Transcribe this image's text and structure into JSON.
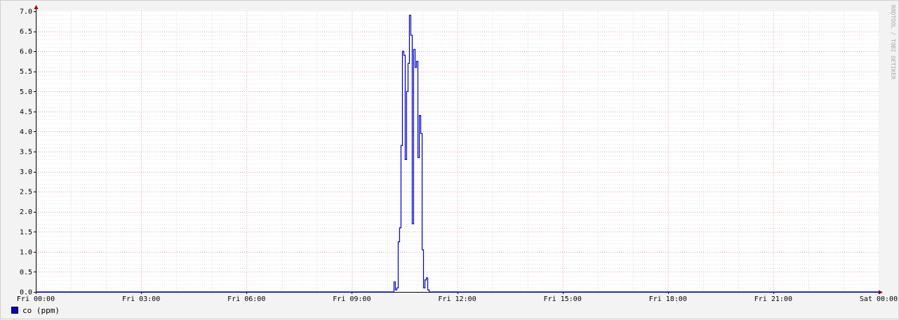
{
  "chart_data": {
    "type": "line",
    "title": "",
    "xlabel": "",
    "ylabel": "",
    "watermark": "RRDTOOL / TOBI OETIKER",
    "x_ticks": [
      "Fri 00:00",
      "Fri 03:00",
      "Fri 06:00",
      "Fri 09:00",
      "Fri 12:00",
      "Fri 15:00",
      "Fri 18:00",
      "Fri 21:00",
      "Sat 00:00"
    ],
    "xlim_hours": [
      0,
      24
    ],
    "y_ticks": [
      "0.0",
      "0.5",
      "1.0",
      "1.5",
      "2.0",
      "2.5",
      "3.0",
      "3.5",
      "4.0",
      "4.5",
      "5.0",
      "5.5",
      "6.0",
      "6.5",
      "7.0"
    ],
    "ylim": [
      0,
      7
    ],
    "grid": true,
    "legend_position": "bottom-left",
    "series": [
      {
        "name": "co (ppm)",
        "color": "#0000cc",
        "x_hours": [
          0,
          10.2,
          10.24,
          10.28,
          10.32,
          10.36,
          10.4,
          10.44,
          10.48,
          10.52,
          10.56,
          10.6,
          10.64,
          10.68,
          10.72,
          10.76,
          10.8,
          10.84,
          10.88,
          10.92,
          10.96,
          11.0,
          11.04,
          11.08,
          11.12,
          11.16,
          11.2,
          11.24,
          11.28,
          11.32,
          11.36,
          24
        ],
        "values": [
          0,
          0.25,
          0.05,
          0.1,
          1.25,
          1.6,
          3.65,
          6.0,
          5.9,
          3.3,
          5.0,
          5.7,
          6.9,
          6.4,
          1.7,
          6.05,
          5.6,
          5.75,
          3.35,
          4.4,
          3.95,
          1.05,
          0.1,
          0.3,
          0.35,
          0.05,
          0,
          0,
          0,
          0,
          0,
          0
        ]
      }
    ]
  },
  "legend": {
    "label": "co (ppm)",
    "color": "#0000cc"
  }
}
